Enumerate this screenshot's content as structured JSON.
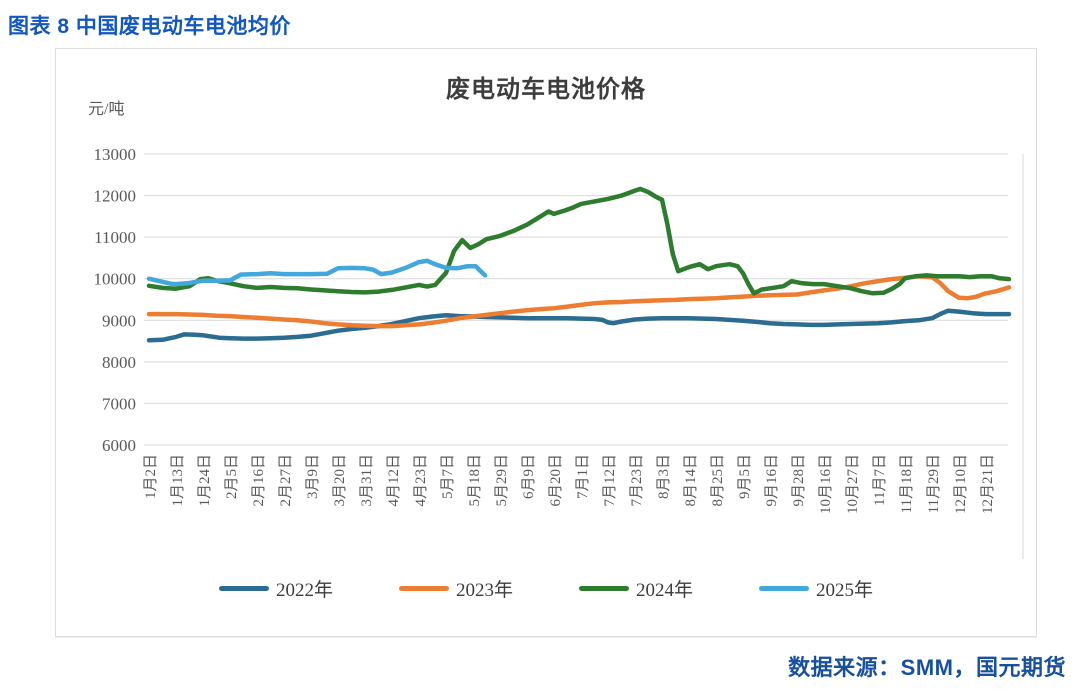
{
  "page": {
    "header": "图表 8 中国废电动车电池均价",
    "source": "数据来源：SMM，国元期货"
  },
  "chart_data": {
    "type": "line",
    "title": "废电动车电池价格",
    "y_unit": "元/吨",
    "ylim": [
      6000,
      13000
    ],
    "yticks": [
      13000,
      12000,
      11000,
      10000,
      9000,
      8000,
      7000,
      6000
    ],
    "grid": "horizontal",
    "grid_color": "#d9d9d9",
    "axis_text_color": "#595959",
    "legend_position": "bottom",
    "x_tick_labels": [
      "1月2日",
      "1月13日",
      "1月24日",
      "2月5日",
      "2月16日",
      "2月27日",
      "3月9日",
      "3月20日",
      "3月31日",
      "4月12日",
      "4月23日",
      "5月7日",
      "5月18日",
      "5月29日",
      "6月9日",
      "6月20日",
      "7月1日",
      "7月12日",
      "7月23日",
      "8月3日",
      "8月14日",
      "8月25日",
      "9月5日",
      "9月16日",
      "9月28日",
      "10月16日",
      "10月27日",
      "11月7日",
      "11月18日",
      "11月29日",
      "12月10日",
      "12月21日"
    ],
    "series": [
      {
        "name": "2022年",
        "color": "#2c6c90",
        "points": [
          [
            0,
            8520
          ],
          [
            0.5,
            8530
          ],
          [
            1,
            8600
          ],
          [
            1.3,
            8660
          ],
          [
            1.7,
            8650
          ],
          [
            2,
            8640
          ],
          [
            2.3,
            8610
          ],
          [
            2.6,
            8580
          ],
          [
            3,
            8570
          ],
          [
            3.5,
            8560
          ],
          [
            4,
            8560
          ],
          [
            4.5,
            8570
          ],
          [
            5,
            8580
          ],
          [
            5.5,
            8600
          ],
          [
            6,
            8630
          ],
          [
            6.5,
            8690
          ],
          [
            7,
            8750
          ],
          [
            7.5,
            8790
          ],
          [
            8,
            8820
          ],
          [
            8.5,
            8860
          ],
          [
            9,
            8910
          ],
          [
            9.5,
            8980
          ],
          [
            10,
            9050
          ],
          [
            10.5,
            9090
          ],
          [
            11,
            9120
          ],
          [
            11.5,
            9100
          ],
          [
            12,
            9090
          ],
          [
            12.5,
            9080
          ],
          [
            13,
            9070
          ],
          [
            13.5,
            9060
          ],
          [
            14,
            9050
          ],
          [
            14.5,
            9050
          ],
          [
            15,
            9050
          ],
          [
            15.5,
            9050
          ],
          [
            16,
            9040
          ],
          [
            16.5,
            9030
          ],
          [
            16.8,
            9010
          ],
          [
            17,
            8950
          ],
          [
            17.2,
            8930
          ],
          [
            17.5,
            8970
          ],
          [
            18,
            9020
          ],
          [
            18.5,
            9040
          ],
          [
            19,
            9050
          ],
          [
            19.5,
            9050
          ],
          [
            20,
            9050
          ],
          [
            20.5,
            9040
          ],
          [
            21,
            9030
          ],
          [
            21.5,
            9010
          ],
          [
            22,
            8990
          ],
          [
            22.5,
            8960
          ],
          [
            23,
            8930
          ],
          [
            23.5,
            8910
          ],
          [
            24,
            8900
          ],
          [
            24.5,
            8890
          ],
          [
            25,
            8890
          ],
          [
            25.5,
            8900
          ],
          [
            26,
            8910
          ],
          [
            26.5,
            8920
          ],
          [
            27,
            8930
          ],
          [
            27.5,
            8950
          ],
          [
            28,
            8980
          ],
          [
            28.5,
            9000
          ],
          [
            29,
            9050
          ],
          [
            29.3,
            9150
          ],
          [
            29.6,
            9230
          ],
          [
            30,
            9210
          ],
          [
            30.5,
            9170
          ],
          [
            31,
            9150
          ],
          [
            31.85,
            9150
          ]
        ]
      },
      {
        "name": "2023年",
        "color": "#ed7d31",
        "points": [
          [
            0,
            9150
          ],
          [
            0.5,
            9150
          ],
          [
            1,
            9150
          ],
          [
            1.5,
            9140
          ],
          [
            2,
            9130
          ],
          [
            2.5,
            9110
          ],
          [
            3,
            9100
          ],
          [
            3.5,
            9080
          ],
          [
            4,
            9060
          ],
          [
            4.5,
            9040
          ],
          [
            5,
            9020
          ],
          [
            5.5,
            9000
          ],
          [
            6,
            8970
          ],
          [
            6.5,
            8930
          ],
          [
            7,
            8900
          ],
          [
            7.5,
            8880
          ],
          [
            8,
            8870
          ],
          [
            8.5,
            8860
          ],
          [
            9,
            8860
          ],
          [
            9.5,
            8880
          ],
          [
            10,
            8900
          ],
          [
            10.5,
            8940
          ],
          [
            11,
            8990
          ],
          [
            11.5,
            9050
          ],
          [
            12,
            9090
          ],
          [
            12.5,
            9130
          ],
          [
            13,
            9170
          ],
          [
            13.5,
            9210
          ],
          [
            14,
            9240
          ],
          [
            14.5,
            9270
          ],
          [
            15,
            9290
          ],
          [
            15.5,
            9330
          ],
          [
            16,
            9370
          ],
          [
            16.5,
            9410
          ],
          [
            17,
            9430
          ],
          [
            17.5,
            9440
          ],
          [
            18,
            9460
          ],
          [
            18.5,
            9470
          ],
          [
            19,
            9480
          ],
          [
            19.5,
            9490
          ],
          [
            20,
            9510
          ],
          [
            20.5,
            9520
          ],
          [
            21,
            9530
          ],
          [
            21.5,
            9550
          ],
          [
            22,
            9570
          ],
          [
            22.5,
            9590
          ],
          [
            23,
            9600
          ],
          [
            23.5,
            9610
          ],
          [
            24,
            9620
          ],
          [
            24.5,
            9670
          ],
          [
            25,
            9720
          ],
          [
            25.5,
            9760
          ],
          [
            26,
            9820
          ],
          [
            26.5,
            9890
          ],
          [
            27,
            9940
          ],
          [
            27.5,
            9990
          ],
          [
            28,
            10020
          ],
          [
            28.5,
            10060
          ],
          [
            29,
            10040
          ],
          [
            29.3,
            9900
          ],
          [
            29.6,
            9700
          ],
          [
            30,
            9540
          ],
          [
            30.3,
            9530
          ],
          [
            30.6,
            9560
          ],
          [
            31,
            9650
          ],
          [
            31.4,
            9700
          ],
          [
            31.85,
            9790
          ]
        ]
      },
      {
        "name": "2024年",
        "color": "#2e7d2e",
        "points": [
          [
            0,
            9830
          ],
          [
            0.5,
            9780
          ],
          [
            1,
            9760
          ],
          [
            1.5,
            9820
          ],
          [
            1.9,
            9990
          ],
          [
            2.2,
            10010
          ],
          [
            2.5,
            9950
          ],
          [
            3,
            9890
          ],
          [
            3.5,
            9820
          ],
          [
            4,
            9780
          ],
          [
            4.5,
            9800
          ],
          [
            5,
            9780
          ],
          [
            5.5,
            9770
          ],
          [
            6,
            9740
          ],
          [
            6.5,
            9720
          ],
          [
            7,
            9700
          ],
          [
            7.5,
            9680
          ],
          [
            8,
            9670
          ],
          [
            8.5,
            9690
          ],
          [
            9,
            9730
          ],
          [
            9.5,
            9790
          ],
          [
            10,
            9850
          ],
          [
            10.3,
            9810
          ],
          [
            10.6,
            9850
          ],
          [
            11,
            10140
          ],
          [
            11.3,
            10670
          ],
          [
            11.6,
            10930
          ],
          [
            11.9,
            10740
          ],
          [
            12.2,
            10830
          ],
          [
            12.5,
            10950
          ],
          [
            13,
            11030
          ],
          [
            13.5,
            11150
          ],
          [
            14,
            11300
          ],
          [
            14.5,
            11500
          ],
          [
            14.8,
            11620
          ],
          [
            15,
            11560
          ],
          [
            15.4,
            11640
          ],
          [
            15.7,
            11710
          ],
          [
            16,
            11800
          ],
          [
            16.5,
            11860
          ],
          [
            17,
            11920
          ],
          [
            17.5,
            12000
          ],
          [
            18,
            12120
          ],
          [
            18.2,
            12160
          ],
          [
            18.5,
            12080
          ],
          [
            18.8,
            11960
          ],
          [
            19,
            11900
          ],
          [
            19.2,
            11310
          ],
          [
            19.4,
            10590
          ],
          [
            19.6,
            10180
          ],
          [
            20,
            10280
          ],
          [
            20.4,
            10350
          ],
          [
            20.7,
            10230
          ],
          [
            21,
            10300
          ],
          [
            21.5,
            10350
          ],
          [
            21.8,
            10300
          ],
          [
            22,
            10130
          ],
          [
            22.2,
            9870
          ],
          [
            22.4,
            9650
          ],
          [
            22.7,
            9740
          ],
          [
            23,
            9770
          ],
          [
            23.5,
            9820
          ],
          [
            23.8,
            9940
          ],
          [
            24.2,
            9890
          ],
          [
            24.6,
            9870
          ],
          [
            25,
            9870
          ],
          [
            25.5,
            9820
          ],
          [
            26,
            9770
          ],
          [
            26.4,
            9700
          ],
          [
            26.8,
            9650
          ],
          [
            27.2,
            9660
          ],
          [
            27.5,
            9750
          ],
          [
            27.8,
            9870
          ],
          [
            28,
            10010
          ],
          [
            28.4,
            10060
          ],
          [
            28.8,
            10080
          ],
          [
            29.2,
            10060
          ],
          [
            29.6,
            10060
          ],
          [
            30,
            10060
          ],
          [
            30.4,
            10040
          ],
          [
            30.8,
            10060
          ],
          [
            31.2,
            10060
          ],
          [
            31.5,
            10010
          ],
          [
            31.85,
            9990
          ]
        ]
      },
      {
        "name": "2025年",
        "color": "#41a7dd",
        "points": [
          [
            0,
            10000
          ],
          [
            0.4,
            9940
          ],
          [
            0.8,
            9880
          ],
          [
            1,
            9870
          ],
          [
            1.4,
            9890
          ],
          [
            2,
            9950
          ],
          [
            2.5,
            9950
          ],
          [
            3,
            9960
          ],
          [
            3.4,
            10100
          ],
          [
            4,
            10110
          ],
          [
            4.5,
            10130
          ],
          [
            5,
            10110
          ],
          [
            6,
            10110
          ],
          [
            6.6,
            10120
          ],
          [
            7,
            10250
          ],
          [
            7.5,
            10260
          ],
          [
            8,
            10250
          ],
          [
            8.3,
            10220
          ],
          [
            8.6,
            10110
          ],
          [
            9,
            10150
          ],
          [
            9.5,
            10260
          ],
          [
            10,
            10400
          ],
          [
            10.3,
            10430
          ],
          [
            10.6,
            10350
          ],
          [
            11,
            10260
          ],
          [
            11.4,
            10250
          ],
          [
            11.8,
            10300
          ],
          [
            12.1,
            10300
          ],
          [
            12.25,
            10200
          ],
          [
            12.45,
            10080
          ]
        ]
      }
    ]
  }
}
